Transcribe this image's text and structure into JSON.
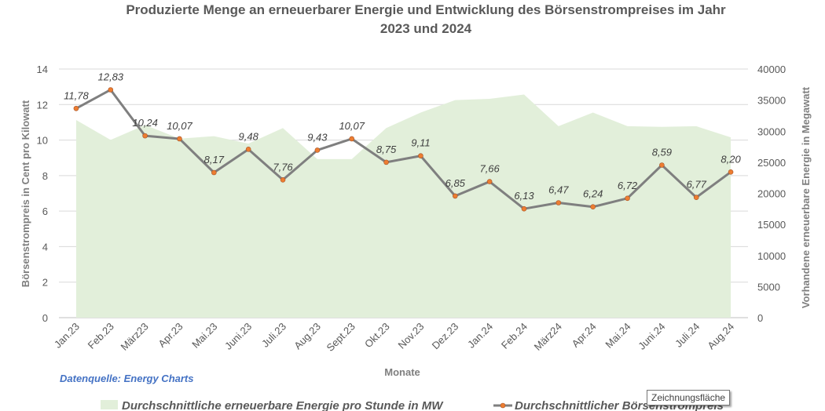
{
  "chart_data": {
    "type": "line",
    "title_line1": "Produzierte Menge an erneuerbarer Energie und Entwicklung des Börsenstrompreises im Jahr",
    "title_line2": "2023 und 2024",
    "xlabel": "Monate",
    "ylabel_left": "Börsenstrompreis in Cent pro Kilowatt",
    "ylabel_right": "Vorhandene erneuerbare Energie in Megawatt",
    "categories": [
      "Jan.23",
      "Feb.23",
      "März23",
      "Apr.23",
      "Mai.23",
      "Juni.23",
      "Juli.23",
      "Aug.23",
      "Sept.23",
      "Okt.23",
      "Nov.23",
      "Dez.23",
      "Jan.24",
      "Feb.24",
      "März24",
      "Apr.24",
      "Mai.24",
      "Juni.24",
      "Juli.24",
      "Aug.24"
    ],
    "ylim_left": [
      0,
      14
    ],
    "yticks_left": [
      "0",
      "2",
      "4",
      "6",
      "8",
      "10",
      "12",
      "14"
    ],
    "ylim_right": [
      0,
      40000
    ],
    "yticks_right": [
      "0",
      "5000",
      "10000",
      "15000",
      "20000",
      "25000",
      "30000",
      "35000",
      "40000"
    ],
    "grid": true,
    "legend_position": "bottom",
    "series": [
      {
        "name": "Durchschnittliche erneuerbare Energie pro Stunde in MW",
        "kind": "area",
        "axis": "right",
        "color": "#e2efda",
        "values": [
          31800,
          28600,
          31000,
          28800,
          29200,
          28000,
          30500,
          25500,
          25500,
          30500,
          33000,
          35000,
          35200,
          35900,
          30800,
          33000,
          30800,
          30700,
          30800,
          29000
        ]
      },
      {
        "name": "Durchschnittlicher Börsenstrompreis",
        "kind": "line",
        "axis": "left",
        "color": "#7f7f7f",
        "marker_color": "#ed7d31",
        "values": [
          11.78,
          12.83,
          10.24,
          10.07,
          8.17,
          9.48,
          7.76,
          9.43,
          10.07,
          8.75,
          9.11,
          6.85,
          7.66,
          6.13,
          6.47,
          6.24,
          6.72,
          8.59,
          6.77,
          8.2
        ],
        "labels": [
          "11,78",
          "12,83",
          "10,24",
          "10,07",
          "8,17",
          "9,48",
          "7,76",
          "9,43",
          "10,07",
          "8,75",
          "9,11",
          "6,85",
          "7,66",
          "6,13",
          "6,47",
          "6,24",
          "6,72",
          "8,59",
          "6,77",
          "8,20"
        ]
      }
    ],
    "source_text": "Datenquelle: Energy Charts",
    "tooltip_text": "Zeichnungsfläche"
  }
}
